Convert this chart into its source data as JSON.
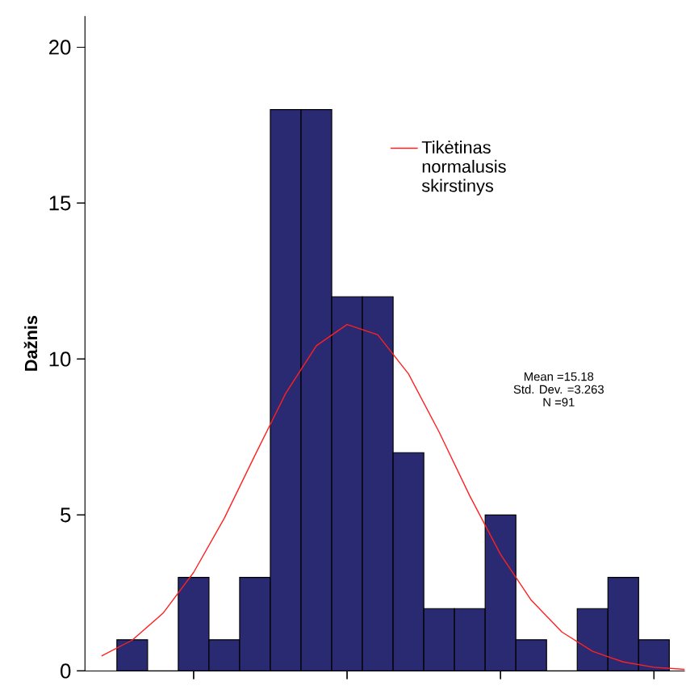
{
  "chart_data": [
    {
      "type": "bar",
      "categories": [
        null,
        null,
        null,
        null,
        null,
        null,
        null,
        null,
        null,
        null,
        null,
        null,
        null,
        null,
        null,
        null,
        null,
        null,
        null,
        null
      ],
      "values": [
        null,
        1,
        0,
        3,
        1,
        3,
        18,
        18,
        12,
        12,
        7,
        2,
        2,
        5,
        1,
        0,
        2,
        3,
        1,
        null
      ],
      "color": "#2a2a72",
      "ylabel": "Dažnis",
      "ylim": [
        0,
        21
      ],
      "yticks": [
        0,
        5,
        10,
        15,
        20
      ],
      "tick_labels": "y",
      "grid": false,
      "annotations": [
        "Mean =15.18",
        "Std. Dev. =3.263",
        "N =91"
      ]
    },
    {
      "type": "line",
      "categories": [
        null,
        null,
        null,
        null,
        null,
        null,
        null,
        null,
        null,
        null,
        null,
        null,
        null,
        null,
        null,
        null,
        null,
        null,
        null,
        null
      ],
      "series": [
        {
          "name": "Tikėtinas normalusis skirstinys",
          "color": "#ff2020",
          "values": [
            0.48,
            0.99,
            1.85,
            3.16,
            4.9,
            6.92,
            8.9,
            10.43,
            11.11,
            10.78,
            9.53,
            7.66,
            5.61,
            3.74,
            2.27,
            1.25,
            0.63,
            0.29,
            0.12,
            0.05
          ]
        }
      ],
      "ylim": [
        0,
        21
      ],
      "yticks": [
        0,
        5,
        10,
        15,
        20
      ],
      "tick_labels": false,
      "legend": "right",
      "marker": "none"
    }
  ]
}
